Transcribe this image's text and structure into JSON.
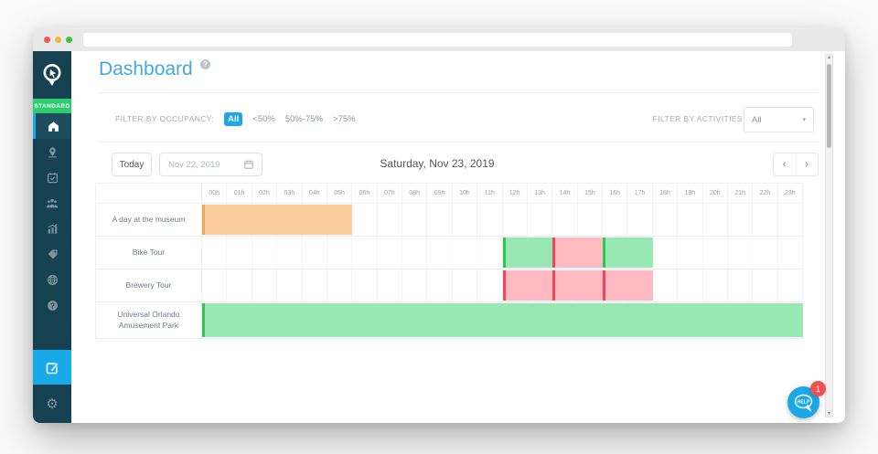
{
  "window": {
    "traffic_lights": [
      "#f4564f",
      "#f6b73e",
      "#3ec43a"
    ]
  },
  "sidebar": {
    "plan_badge": "STANDARD",
    "items": [
      {
        "icon": "home-icon",
        "active": true
      },
      {
        "icon": "map-pin-icon",
        "active": false
      },
      {
        "icon": "calendar-check-icon",
        "active": false
      },
      {
        "icon": "users-icon",
        "active": false
      },
      {
        "icon": "stats-icon",
        "active": false
      },
      {
        "icon": "tag-icon",
        "active": false
      },
      {
        "icon": "globe-icon",
        "active": false
      },
      {
        "icon": "question-icon",
        "active": false
      }
    ],
    "edit_item_icon": "compose-icon",
    "settings_icon": "gear-icon",
    "gear_glyph": "⚙"
  },
  "header": {
    "title": "Dashboard",
    "help_glyph": "?"
  },
  "filters": {
    "occupancy_label": "FILTER BY OCCUPANCY:",
    "occupancy_options": [
      "All",
      "<50%",
      "50%-75%",
      ">75%"
    ],
    "occupancy_selected": "All",
    "activities_label": "FILTER BY ACTIVITIES",
    "activities_value": "All",
    "dropdown_caret": "▾"
  },
  "datebar": {
    "today_label": "Today",
    "date_value": "Nov 22, 2019",
    "current_date": "Saturday, Nov 23, 2019",
    "prev_glyph": "‹",
    "next_glyph": "›"
  },
  "timeline": {
    "hours": [
      "00h",
      "01h",
      "02h",
      "03h",
      "04h",
      "05h",
      "06h",
      "07h",
      "08h",
      "09h",
      "10h",
      "11h",
      "12h",
      "13h",
      "14h",
      "15h",
      "16h",
      "17h",
      "18h",
      "19h",
      "20h",
      "21h",
      "22h",
      "23h"
    ],
    "rows": [
      {
        "label": "A day at the museum",
        "bars": [
          {
            "start": 0,
            "end": 6,
            "color": "orange"
          }
        ]
      },
      {
        "label": "Bike Tour",
        "bars": [
          {
            "start": 12,
            "end": 14,
            "color": "green"
          },
          {
            "start": 14,
            "end": 16,
            "color": "pink"
          },
          {
            "start": 16,
            "end": 18,
            "color": "green"
          }
        ]
      },
      {
        "label": "Brewery Tour",
        "bars": [
          {
            "start": 12,
            "end": 14,
            "color": "pink"
          },
          {
            "start": 14,
            "end": 16,
            "color": "pink"
          },
          {
            "start": 16,
            "end": 18,
            "color": "pink"
          }
        ]
      },
      {
        "label": "Universal Orlando Amusement Park",
        "bars": [
          {
            "start": 0,
            "end": 24,
            "color": "green"
          }
        ]
      }
    ],
    "palette": {
      "orange": {
        "fill": "#fbce9b",
        "edge": "#f7a44d"
      },
      "green": {
        "fill": "#97e8b2",
        "edge": "#2bc654"
      },
      "pink": {
        "fill": "#ffb9c1",
        "edge": "#f2455c"
      }
    }
  },
  "scrollbar": {
    "up_glyph": "▴",
    "down_glyph": "▾"
  },
  "help_widget": {
    "label": "HELP",
    "badge_count": "1"
  },
  "colors": {
    "sidebar_bg": "#164150",
    "accent_blue": "#1ba7e8",
    "title_blue": "#44a8e6",
    "badge_green": "#2ecc71",
    "notification_red": "#f3514f"
  }
}
